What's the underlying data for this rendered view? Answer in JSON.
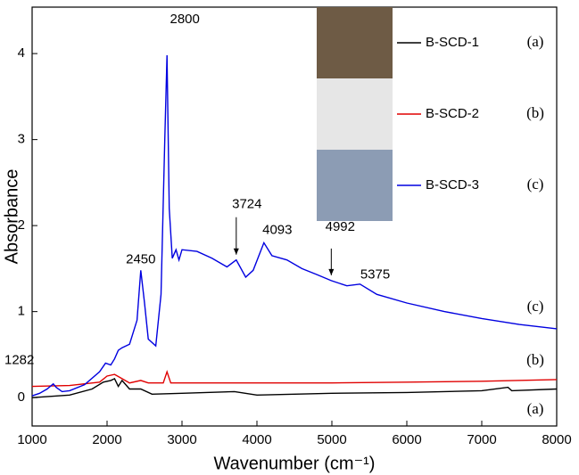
{
  "chart_data": {
    "type": "line",
    "x_label": "Wavenumber (cm⁻¹)",
    "y_label": "Absorbance",
    "xlim": [
      1000,
      8000
    ],
    "xticks": [
      1000,
      2000,
      3000,
      4000,
      5000,
      6000,
      7000,
      8000
    ],
    "ylim": [
      -0.33,
      4.54
    ],
    "yticks": [
      0,
      1,
      2,
      3,
      4
    ],
    "peaks": [
      1282,
      2450,
      2800,
      3724,
      4093,
      4992,
      5375
    ],
    "arrow_peaks": [
      3724,
      4992
    ],
    "series": [
      {
        "name": "B-SCD-1",
        "tag": "(a)",
        "color": "#000000",
        "photo": "#6e5b45",
        "x": [
          1000,
          1500,
          1800,
          1950,
          2050,
          2100,
          2150,
          2200,
          2300,
          2450,
          2600,
          3000,
          3700,
          4000,
          5000,
          6000,
          7000,
          7350,
          7400,
          8000
        ],
        "values": [
          0.0,
          0.03,
          0.1,
          0.18,
          0.2,
          0.22,
          0.13,
          0.2,
          0.1,
          0.1,
          0.04,
          0.05,
          0.07,
          0.03,
          0.05,
          0.06,
          0.08,
          0.12,
          0.08,
          0.1
        ]
      },
      {
        "name": "B-SCD-2",
        "tag": "(b)",
        "color": "#e00000",
        "photo": "#e6e6e6",
        "x": [
          1000,
          1500,
          1900,
          2000,
          2100,
          2200,
          2300,
          2450,
          2550,
          2750,
          2800,
          2850,
          3500,
          4000,
          5000,
          6000,
          7000,
          8000
        ],
        "values": [
          0.13,
          0.14,
          0.18,
          0.25,
          0.27,
          0.22,
          0.17,
          0.2,
          0.17,
          0.17,
          0.3,
          0.17,
          0.17,
          0.17,
          0.17,
          0.18,
          0.19,
          0.21
        ]
      },
      {
        "name": "B-SCD-3",
        "tag": "(c)",
        "color": "#0000e0",
        "photo": "#8c9cb4",
        "x": [
          1000,
          1100,
          1200,
          1282,
          1320,
          1400,
          1500,
          1700,
          1900,
          1980,
          2050,
          2100,
          2150,
          2200,
          2300,
          2400,
          2450,
          2500,
          2550,
          2650,
          2720,
          2770,
          2800,
          2830,
          2870,
          2920,
          2960,
          3000,
          3200,
          3400,
          3600,
          3724,
          3850,
          3950,
          4093,
          4200,
          4400,
          4600,
          4800,
          4992,
          5200,
          5375,
          5600,
          6000,
          6500,
          7000,
          7500,
          8000
        ],
        "values": [
          0.02,
          0.05,
          0.1,
          0.16,
          0.12,
          0.07,
          0.08,
          0.15,
          0.3,
          0.4,
          0.38,
          0.45,
          0.55,
          0.58,
          0.62,
          0.9,
          1.48,
          1.1,
          0.68,
          0.6,
          1.2,
          3.0,
          3.98,
          2.2,
          1.62,
          1.72,
          1.6,
          1.72,
          1.7,
          1.62,
          1.52,
          1.6,
          1.4,
          1.48,
          1.8,
          1.65,
          1.6,
          1.5,
          1.43,
          1.36,
          1.3,
          1.32,
          1.2,
          1.1,
          1.0,
          0.92,
          0.85,
          0.8
        ]
      }
    ]
  }
}
